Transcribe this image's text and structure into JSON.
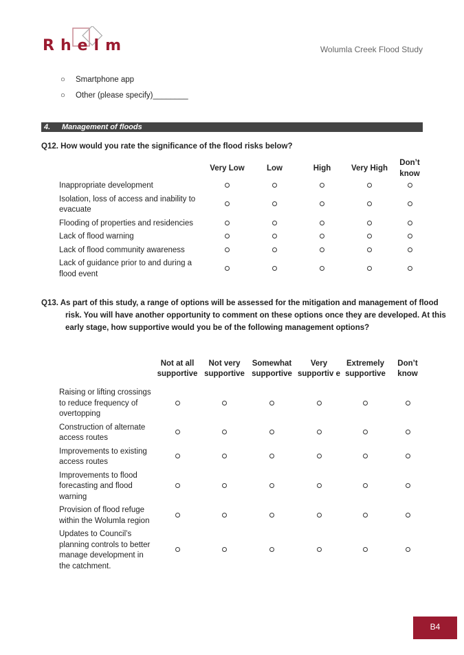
{
  "header": {
    "logo_text": "Rhelm",
    "doc_title": "Wolumla Creek Flood Study"
  },
  "bullets": [
    "Smartphone app",
    "Other (please specify)________"
  ],
  "section": {
    "number": "4.",
    "title": "Management of floods"
  },
  "q12": {
    "question": "Q12. How would you rate the significance of the flood risks below?",
    "columns": [
      "Very Low",
      "Low",
      "High",
      "Very High",
      "Don’t know"
    ],
    "rows": [
      "Inappropriate development",
      "Isolation, loss of access and inability to evacuate",
      "Flooding of properties and residencies",
      "Lack of flood warning",
      "Lack of flood community awareness",
      "Lack of guidance prior to and during a flood event"
    ]
  },
  "q13": {
    "question": "Q13. As part of this study, a range of options will be assessed for the mitigation and management of flood risk. You will have another opportunity to comment on these options once they are developed. At this early stage, how supportive would you be of the following management options?",
    "columns": [
      "Not at all supportive",
      "Not very supportive",
      "Somewhat supportive",
      "Very supportiv e",
      "Extremely supportive",
      "Don’t know"
    ],
    "rows": [
      "Raising or lifting crossings to reduce frequency of overtopping",
      "Construction of alternate access routes",
      "Improvements to existing access routes",
      "Improvements to flood forecasting and flood warning",
      "Provision of flood refuge within the Wolumla region",
      "Updates to Council’s planning controls to better manage development in the catchment."
    ]
  },
  "footer": {
    "page_number": "B4"
  },
  "colors": {
    "brand": "#9b1b30",
    "section_bar": "#444444"
  }
}
